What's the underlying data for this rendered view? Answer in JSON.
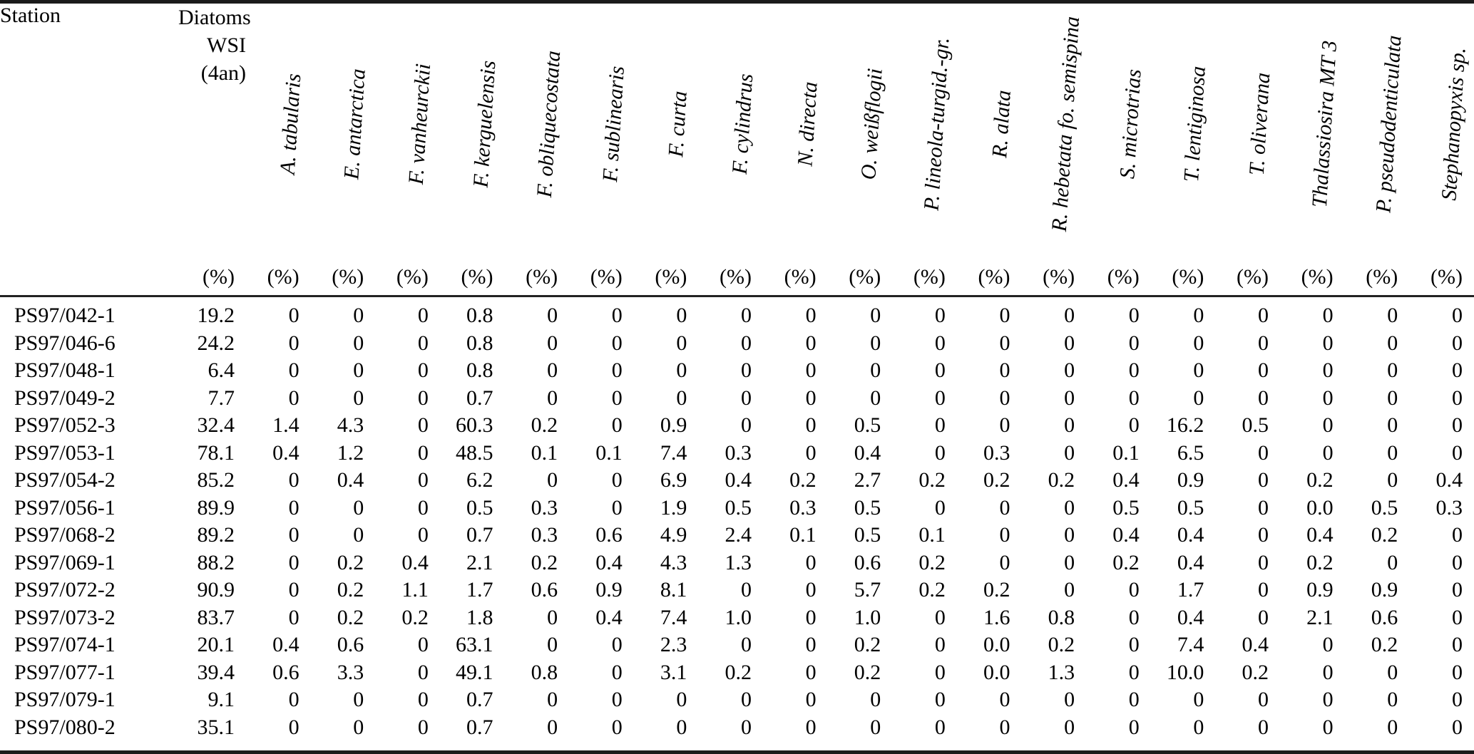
{
  "table": {
    "station_header": "Station",
    "wsi_header_lines": [
      "Diatoms",
      "WSI",
      "(4an)"
    ],
    "unit_label": "(%)",
    "species_headers": [
      "A. tabularis",
      "E. antarctica",
      "F. vanheurckii",
      "F. kerguelensis",
      "F. obliquecostata",
      "F. sublinearis",
      "F. curta",
      "F. cylindrus",
      "N. directa",
      "O. weißflogii",
      "P. lineola-turgid.-gr.",
      "R. alata",
      "R. hebetata fo. semispina",
      "S. microtrias",
      "T. lentiginosa",
      "T. oliverana",
      "Thalassiosira MT 3",
      "P. pseudodenticulata",
      "Stephanopyxis sp."
    ],
    "rows": [
      {
        "station": "PS97/042-1",
        "wsi": "19.2",
        "values": [
          "0",
          "0",
          "0",
          "0.8",
          "0",
          "0",
          "0",
          "0",
          "0",
          "0",
          "0",
          "0",
          "0",
          "0",
          "0",
          "0",
          "0",
          "0",
          "0"
        ]
      },
      {
        "station": "PS97/046-6",
        "wsi": "24.2",
        "values": [
          "0",
          "0",
          "0",
          "0.8",
          "0",
          "0",
          "0",
          "0",
          "0",
          "0",
          "0",
          "0",
          "0",
          "0",
          "0",
          "0",
          "0",
          "0",
          "0"
        ]
      },
      {
        "station": "PS97/048-1",
        "wsi": "6.4",
        "values": [
          "0",
          "0",
          "0",
          "0.8",
          "0",
          "0",
          "0",
          "0",
          "0",
          "0",
          "0",
          "0",
          "0",
          "0",
          "0",
          "0",
          "0",
          "0",
          "0"
        ]
      },
      {
        "station": "PS97/049-2",
        "wsi": "7.7",
        "values": [
          "0",
          "0",
          "0",
          "0.7",
          "0",
          "0",
          "0",
          "0",
          "0",
          "0",
          "0",
          "0",
          "0",
          "0",
          "0",
          "0",
          "0",
          "0",
          "0"
        ]
      },
      {
        "station": "PS97/052-3",
        "wsi": "32.4",
        "values": [
          "1.4",
          "4.3",
          "0",
          "60.3",
          "0.2",
          "0",
          "0.9",
          "0",
          "0",
          "0.5",
          "0",
          "0",
          "0",
          "0",
          "16.2",
          "0.5",
          "0",
          "0",
          "0"
        ]
      },
      {
        "station": "PS97/053-1",
        "wsi": "78.1",
        "values": [
          "0.4",
          "1.2",
          "0",
          "48.5",
          "0.1",
          "0.1",
          "7.4",
          "0.3",
          "0",
          "0.4",
          "0",
          "0.3",
          "0",
          "0.1",
          "6.5",
          "0",
          "0",
          "0",
          "0"
        ]
      },
      {
        "station": "PS97/054-2",
        "wsi": "85.2",
        "values": [
          "0",
          "0.4",
          "0",
          "6.2",
          "0",
          "0",
          "6.9",
          "0.4",
          "0.2",
          "2.7",
          "0.2",
          "0.2",
          "0.2",
          "0.4",
          "0.9",
          "0",
          "0.2",
          "0",
          "0.4"
        ]
      },
      {
        "station": "PS97/056-1",
        "wsi": "89.9",
        "values": [
          "0",
          "0",
          "0",
          "0.5",
          "0.3",
          "0",
          "1.9",
          "0.5",
          "0.3",
          "0.5",
          "0",
          "0",
          "0",
          "0.5",
          "0.5",
          "0",
          "0.0",
          "0.5",
          "0.3"
        ]
      },
      {
        "station": "PS97/068-2",
        "wsi": "89.2",
        "values": [
          "0",
          "0",
          "0",
          "0.7",
          "0.3",
          "0.6",
          "4.9",
          "2.4",
          "0.1",
          "0.5",
          "0.1",
          "0",
          "0",
          "0.4",
          "0.4",
          "0",
          "0.4",
          "0.2",
          "0"
        ]
      },
      {
        "station": "PS97/069-1",
        "wsi": "88.2",
        "values": [
          "0",
          "0.2",
          "0.4",
          "2.1",
          "0.2",
          "0.4",
          "4.3",
          "1.3",
          "0",
          "0.6",
          "0.2",
          "0",
          "0",
          "0.2",
          "0.4",
          "0",
          "0.2",
          "0",
          "0"
        ]
      },
      {
        "station": "PS97/072-2",
        "wsi": "90.9",
        "values": [
          "0",
          "0.2",
          "1.1",
          "1.7",
          "0.6",
          "0.9",
          "8.1",
          "0",
          "0",
          "5.7",
          "0.2",
          "0.2",
          "0",
          "0",
          "1.7",
          "0",
          "0.9",
          "0.9",
          "0"
        ]
      },
      {
        "station": "PS97/073-2",
        "wsi": "83.7",
        "values": [
          "0",
          "0.2",
          "0.2",
          "1.8",
          "0",
          "0.4",
          "7.4",
          "1.0",
          "0",
          "1.0",
          "0",
          "1.6",
          "0.8",
          "0",
          "0.4",
          "0",
          "2.1",
          "0.6",
          "0"
        ]
      },
      {
        "station": "PS97/074-1",
        "wsi": "20.1",
        "values": [
          "0.4",
          "0.6",
          "0",
          "63.1",
          "0",
          "0",
          "2.3",
          "0",
          "0",
          "0.2",
          "0",
          "0.0",
          "0.2",
          "0",
          "7.4",
          "0.4",
          "0",
          "0.2",
          "0"
        ]
      },
      {
        "station": "PS97/077-1",
        "wsi": "39.4",
        "values": [
          "0.6",
          "3.3",
          "0",
          "49.1",
          "0.8",
          "0",
          "3.1",
          "0.2",
          "0",
          "0.2",
          "0",
          "0.0",
          "1.3",
          "0",
          "10.0",
          "0.2",
          "0",
          "0",
          "0"
        ]
      },
      {
        "station": "PS97/079-1",
        "wsi": "9.1",
        "values": [
          "0",
          "0",
          "0",
          "0.7",
          "0",
          "0",
          "0",
          "0",
          "0",
          "0",
          "0",
          "0",
          "0",
          "0",
          "0",
          "0",
          "0",
          "0",
          "0"
        ]
      },
      {
        "station": "PS97/080-2",
        "wsi": "35.1",
        "values": [
          "0",
          "0",
          "0",
          "0.7",
          "0",
          "0",
          "0",
          "0",
          "0",
          "0",
          "0",
          "0",
          "0",
          "0",
          "0",
          "0",
          "0",
          "0",
          "0"
        ]
      }
    ]
  }
}
